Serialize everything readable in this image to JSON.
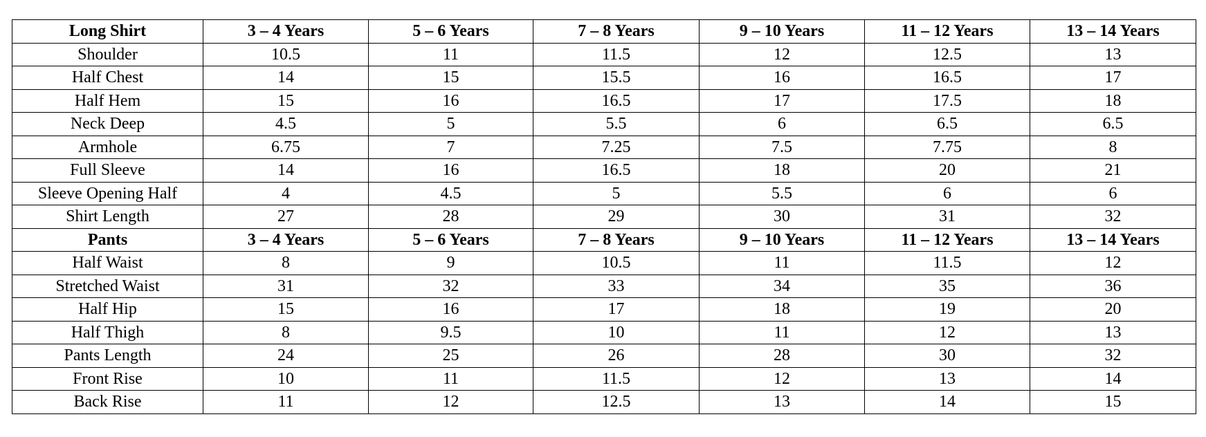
{
  "sections": [
    {
      "header": [
        "Long Shirt",
        "3 – 4 Years",
        "5 – 6 Years",
        "7 – 8 Years",
        "9 – 10 Years",
        "11 – 12 Years",
        "13 – 14 Years"
      ],
      "rows": [
        [
          "Shoulder",
          10.5,
          11,
          11.5,
          12,
          12.5,
          13
        ],
        [
          "Half Chest",
          14,
          15,
          15.5,
          16,
          16.5,
          17
        ],
        [
          "Half Hem",
          15,
          16,
          16.5,
          17,
          17.5,
          18
        ],
        [
          "Neck Deep",
          4.5,
          5,
          5.5,
          6,
          6.5,
          6.5
        ],
        [
          "Armhole",
          6.75,
          7,
          7.25,
          7.5,
          7.75,
          8
        ],
        [
          "Full Sleeve",
          14,
          16,
          16.5,
          18,
          20,
          21
        ],
        [
          "Sleeve Opening Half",
          4,
          4.5,
          5,
          5.5,
          6,
          6
        ],
        [
          "Shirt Length",
          27,
          28,
          29,
          30,
          31,
          32
        ]
      ]
    },
    {
      "header": [
        "Pants",
        "3 – 4 Years",
        "5 – 6 Years",
        "7 – 8 Years",
        "9 – 10 Years",
        "11 – 12 Years",
        "13 – 14 Years"
      ],
      "rows": [
        [
          "Half Waist",
          8,
          9,
          10.5,
          11,
          11.5,
          12
        ],
        [
          "Stretched Waist",
          31,
          32,
          33,
          34,
          35,
          36
        ],
        [
          "Half Hip",
          15,
          16,
          17,
          18,
          19,
          20
        ],
        [
          "Half Thigh",
          8,
          9.5,
          10,
          11,
          12,
          13
        ],
        [
          "Pants Length",
          24,
          25,
          26,
          28,
          30,
          32
        ],
        [
          "Front Rise",
          10,
          11,
          11.5,
          12,
          13,
          14
        ],
        [
          "Back Rise",
          11,
          12,
          12.5,
          13,
          14,
          15
        ]
      ]
    }
  ]
}
